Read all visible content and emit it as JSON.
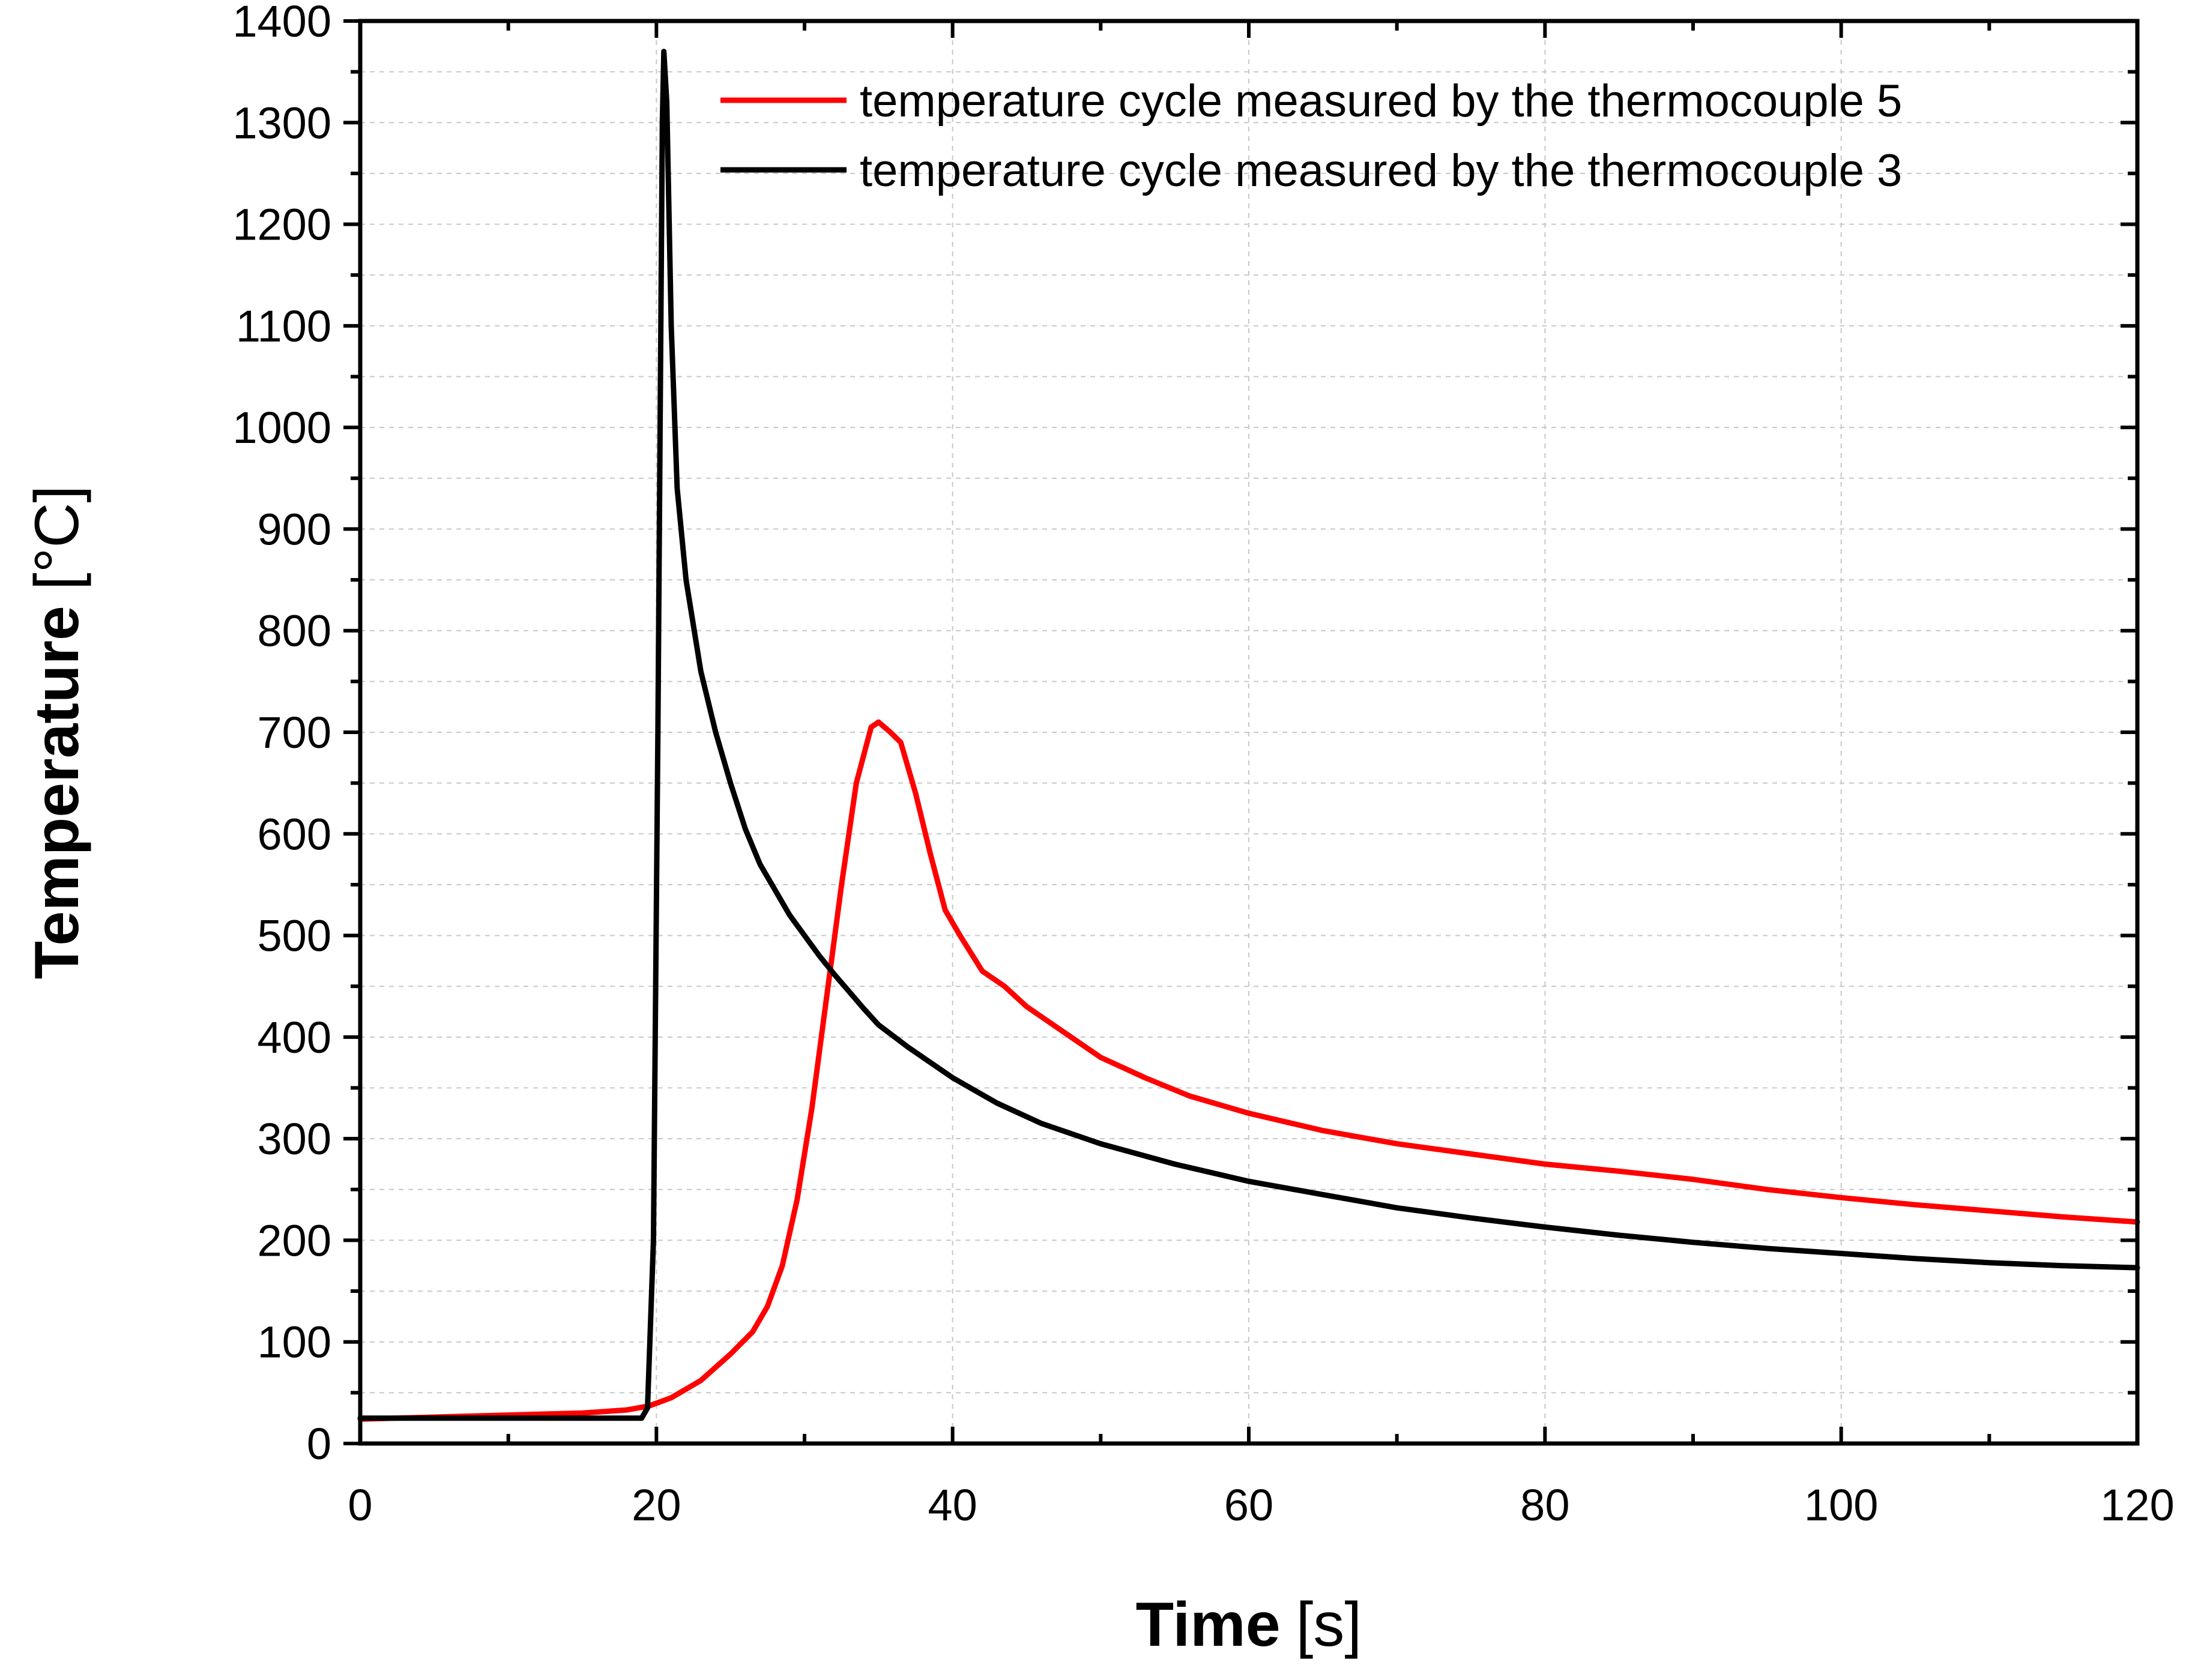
{
  "chart_data": {
    "type": "line",
    "title": "",
    "xlabel": "Time",
    "xlabel_unit": "[s]",
    "ylabel": "Temperature",
    "ylabel_unit": "[°C]",
    "xlim": [
      0,
      120
    ],
    "ylim": [
      0,
      1400
    ],
    "x_ticks": [
      0,
      20,
      40,
      60,
      80,
      100,
      120
    ],
    "x_tick_labels": [
      "0",
      "20",
      "40",
      "60",
      "80",
      "100",
      "120"
    ],
    "y_ticks": [
      0,
      100,
      200,
      300,
      400,
      500,
      600,
      700,
      800,
      900,
      1000,
      1100,
      1200,
      1300,
      1400
    ],
    "y_tick_labels": [
      "0",
      "100",
      "200",
      "300",
      "400",
      "500",
      "600",
      "700",
      "800",
      "900",
      "1000",
      "1100",
      "1200",
      "1300",
      "1400"
    ],
    "grid": true,
    "legend_position": "top-right",
    "series": [
      {
        "name": "temperature cycle measured by the thermocouple 5",
        "color": "#ff0000",
        "points": [
          [
            0,
            24
          ],
          [
            5,
            26
          ],
          [
            10,
            28
          ],
          [
            15,
            30
          ],
          [
            18,
            33
          ],
          [
            19.5,
            37
          ],
          [
            21,
            45
          ],
          [
            23,
            62
          ],
          [
            25,
            88
          ],
          [
            26.5,
            110
          ],
          [
            27.5,
            135
          ],
          [
            28.5,
            175
          ],
          [
            29.5,
            240
          ],
          [
            30.5,
            330
          ],
          [
            31.5,
            440
          ],
          [
            32.5,
            550
          ],
          [
            33.5,
            650
          ],
          [
            34.5,
            705
          ],
          [
            35,
            710
          ],
          [
            35.8,
            700
          ],
          [
            36.5,
            690
          ],
          [
            37.5,
            640
          ],
          [
            38.5,
            580
          ],
          [
            39.5,
            525
          ],
          [
            40.5,
            500
          ],
          [
            42,
            465
          ],
          [
            43.5,
            450
          ],
          [
            45,
            430
          ],
          [
            47,
            410
          ],
          [
            50,
            380
          ],
          [
            53,
            360
          ],
          [
            56,
            342
          ],
          [
            60,
            325
          ],
          [
            65,
            308
          ],
          [
            70,
            295
          ],
          [
            75,
            285
          ],
          [
            80,
            275
          ],
          [
            85,
            268
          ],
          [
            90,
            260
          ],
          [
            95,
            250
          ],
          [
            100,
            242
          ],
          [
            105,
            235
          ],
          [
            110,
            229
          ],
          [
            115,
            223
          ],
          [
            120,
            218
          ]
        ]
      },
      {
        "name": "temperature cycle measured by the thermocouple 3",
        "color": "#000000",
        "points": [
          [
            0,
            25
          ],
          [
            5,
            25
          ],
          [
            10,
            25
          ],
          [
            15,
            25
          ],
          [
            18,
            25
          ],
          [
            19,
            25
          ],
          [
            19.4,
            35
          ],
          [
            19.8,
            200
          ],
          [
            20.1,
            700
          ],
          [
            20.3,
            1100
          ],
          [
            20.4,
            1300
          ],
          [
            20.5,
            1370
          ],
          [
            20.7,
            1320
          ],
          [
            21,
            1100
          ],
          [
            21.4,
            940
          ],
          [
            22,
            850
          ],
          [
            23,
            760
          ],
          [
            24,
            700
          ],
          [
            25,
            650
          ],
          [
            26,
            605
          ],
          [
            27,
            570
          ],
          [
            28,
            545
          ],
          [
            29,
            520
          ],
          [
            30,
            500
          ],
          [
            31,
            480
          ],
          [
            32,
            462
          ],
          [
            33,
            445
          ],
          [
            34,
            428
          ],
          [
            35,
            412
          ],
          [
            37,
            390
          ],
          [
            40,
            360
          ],
          [
            43,
            335
          ],
          [
            46,
            315
          ],
          [
            50,
            295
          ],
          [
            55,
            275
          ],
          [
            60,
            258
          ],
          [
            65,
            245
          ],
          [
            70,
            232
          ],
          [
            75,
            222
          ],
          [
            80,
            213
          ],
          [
            85,
            205
          ],
          [
            90,
            198
          ],
          [
            95,
            192
          ],
          [
            100,
            187
          ],
          [
            105,
            182
          ],
          [
            110,
            178
          ],
          [
            115,
            175
          ],
          [
            120,
            173
          ]
        ]
      }
    ]
  }
}
